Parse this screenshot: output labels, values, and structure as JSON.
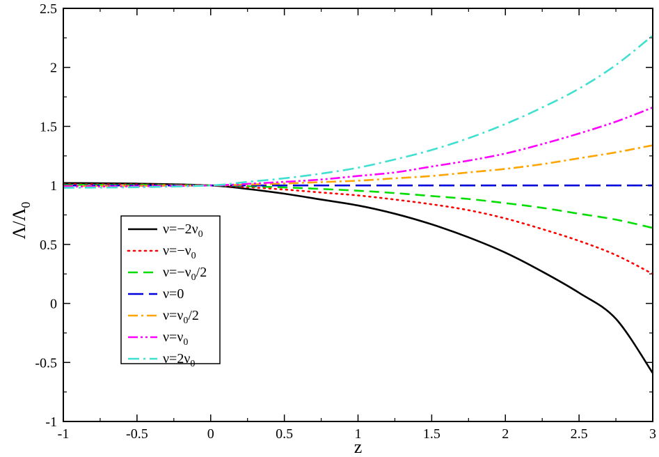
{
  "chart_data": {
    "type": "line",
    "xlabel": "z",
    "ylabel": {
      "base": "Λ/Λ",
      "sub": "0"
    },
    "xlim": [
      -1,
      3
    ],
    "ylim": [
      -1,
      2.5
    ],
    "xticks": [
      {
        "v": -1,
        "label": "-1"
      },
      {
        "v": -0.5,
        "label": "-0.5"
      },
      {
        "v": 0,
        "label": "0"
      },
      {
        "v": 0.5,
        "label": "0.5"
      },
      {
        "v": 1,
        "label": "1"
      },
      {
        "v": 1.5,
        "label": "1.5"
      },
      {
        "v": 2,
        "label": "2"
      },
      {
        "v": 2.5,
        "label": "2.5"
      },
      {
        "v": 3,
        "label": "3"
      }
    ],
    "yticks": [
      {
        "v": -1,
        "label": "-1"
      },
      {
        "v": -0.5,
        "label": "-0.5"
      },
      {
        "v": 0,
        "label": "0"
      },
      {
        "v": 0.5,
        "label": "0.5"
      },
      {
        "v": 1,
        "label": "1"
      },
      {
        "v": 1.5,
        "label": "1.5"
      },
      {
        "v": 2,
        "label": "2"
      },
      {
        "v": 2.5,
        "label": "2.5"
      }
    ],
    "grid": false,
    "legend_position": "left-center",
    "x": [
      -1,
      -0.5,
      0,
      0.25,
      0.5,
      0.75,
      1,
      1.25,
      1.5,
      1.75,
      2,
      2.25,
      2.5,
      2.75,
      3
    ],
    "series": [
      {
        "name": "ν=−2ν0",
        "parts": [
          [
            "ν=−2ν",
            false
          ],
          [
            "0",
            true
          ]
        ],
        "color": "#000000",
        "dash": "",
        "values": [
          1.02,
          1.015,
          1.0,
          0.97,
          0.93,
          0.88,
          0.83,
          0.76,
          0.67,
          0.56,
          0.43,
          0.27,
          0.09,
          -0.13,
          -0.59
        ]
      },
      {
        "name": "ν=−ν0",
        "parts": [
          [
            "ν=−ν",
            false
          ],
          [
            "0",
            true
          ]
        ],
        "color": "#ff0000",
        "dash": "2,6",
        "values": [
          1.01,
          1.008,
          1.0,
          0.985,
          0.965,
          0.94,
          0.915,
          0.88,
          0.84,
          0.79,
          0.72,
          0.63,
          0.53,
          0.41,
          0.25
        ]
      },
      {
        "name": "ν=−ν0/2",
        "parts": [
          [
            "ν=−ν",
            false
          ],
          [
            "0",
            true
          ],
          [
            "/2",
            false
          ]
        ],
        "color": "#00dd00",
        "dash": "14,8",
        "values": [
          1.005,
          1.004,
          1.0,
          0.993,
          0.983,
          0.97,
          0.955,
          0.935,
          0.91,
          0.885,
          0.85,
          0.81,
          0.76,
          0.71,
          0.64
        ]
      },
      {
        "name": "ν=0",
        "parts": [
          [
            "ν=0",
            false
          ]
        ],
        "color": "#0000dd",
        "dash": "22,8",
        "values": [
          1,
          1,
          1,
          1,
          1,
          1,
          1,
          1,
          1,
          1,
          1,
          1,
          1,
          1,
          1
        ]
      },
      {
        "name": "ν=ν0/2",
        "parts": [
          [
            "ν=ν",
            false
          ],
          [
            "0",
            true
          ],
          [
            "/2",
            false
          ]
        ],
        "color": "#ffa500",
        "dash": "14,5,3,5",
        "values": [
          0.995,
          0.996,
          1.0,
          1.007,
          1.016,
          1.028,
          1.04,
          1.06,
          1.08,
          1.11,
          1.14,
          1.18,
          1.23,
          1.28,
          1.34
        ]
      },
      {
        "name": "ν=ν0",
        "parts": [
          [
            "ν=ν",
            false
          ],
          [
            "0",
            true
          ]
        ],
        "color": "#ff00ff",
        "dash": "14,4,3,4,3,4",
        "values": [
          0.99,
          0.992,
          1.0,
          1.013,
          1.03,
          1.05,
          1.08,
          1.11,
          1.16,
          1.21,
          1.27,
          1.35,
          1.44,
          1.54,
          1.66
        ]
      },
      {
        "name": "ν=2ν0",
        "parts": [
          [
            "ν=2ν",
            false
          ],
          [
            "0",
            true
          ]
        ],
        "color": "#40e0d0",
        "dash": "16,6,3,6",
        "values": [
          0.98,
          0.985,
          1.0,
          1.03,
          1.06,
          1.1,
          1.15,
          1.22,
          1.3,
          1.4,
          1.52,
          1.66,
          1.82,
          2.02,
          2.27
        ]
      }
    ]
  }
}
